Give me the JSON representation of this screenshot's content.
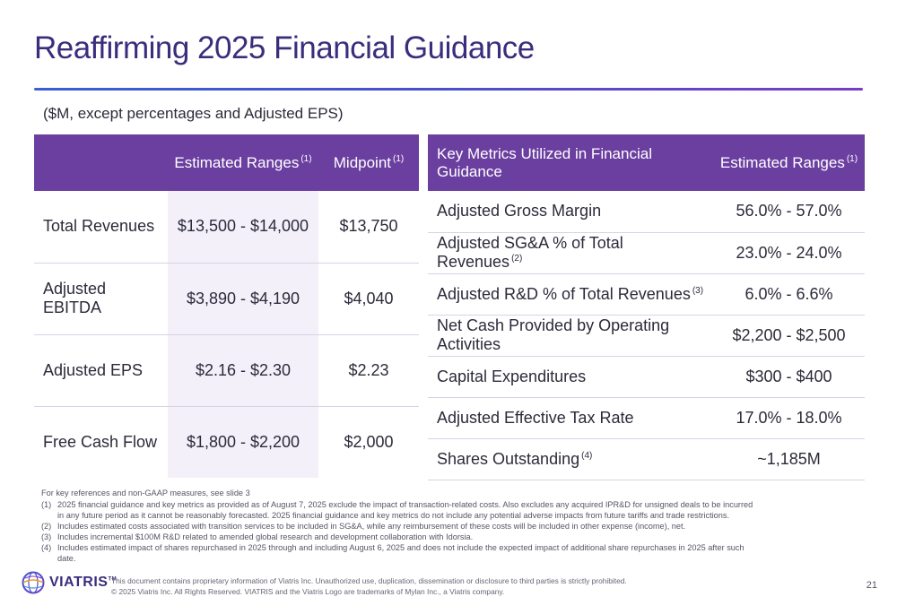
{
  "title": "Reaffirming 2025 Financial Guidance",
  "subtitle": "($M, except percentages and Adjusted EPS)",
  "left_table": {
    "headers": [
      "",
      "Estimated Ranges",
      "Midpoint"
    ],
    "header_refs": [
      "",
      "(1)",
      "(1)"
    ],
    "rows": [
      {
        "label": "Total Revenues",
        "range": "$13,500 - $14,000",
        "midpoint": "$13,750"
      },
      {
        "label": "Adjusted EBITDA",
        "range": "$3,890 - $4,190",
        "midpoint": "$4,040"
      },
      {
        "label": "Adjusted EPS",
        "range": "$2.16 - $2.30",
        "midpoint": "$2.23"
      },
      {
        "label": "Free Cash Flow",
        "range": "$1,800 - $2,200",
        "midpoint": "$2,000"
      }
    ]
  },
  "right_table": {
    "headers": [
      "Key Metrics Utilized in Financial Guidance",
      "Estimated Ranges"
    ],
    "header_refs": [
      "",
      "(1)"
    ],
    "rows": [
      {
        "metric": "Adjusted Gross Margin",
        "ref": "",
        "range": "56.0% - 57.0%"
      },
      {
        "metric": "Adjusted SG&A % of Total Revenues",
        "ref": "(2)",
        "range": "23.0% - 24.0%"
      },
      {
        "metric": "Adjusted R&D % of Total Revenues",
        "ref": "(3)",
        "range": "6.0% - 6.6%"
      },
      {
        "metric": "Net Cash Provided by Operating Activities",
        "ref": "",
        "range": "$2,200 - $2,500"
      },
      {
        "metric": "Capital Expenditures",
        "ref": "",
        "range": "$300 - $400"
      },
      {
        "metric": "Adjusted Effective Tax Rate",
        "ref": "",
        "range": "17.0% - 18.0%"
      },
      {
        "metric": "Shares Outstanding",
        "ref": "(4)",
        "range": "~1,185M"
      }
    ]
  },
  "notes": {
    "head": "For key references and non-GAAP measures, see slide 3",
    "items": [
      {
        "num": "(1)",
        "text": "2025 financial guidance and key metrics as provided as of August 7, 2025 exclude the impact of transaction-related costs. Also excludes any acquired IPR&D for unsigned deals to be incurred in any future period as it cannot be reasonably forecasted. 2025 financial guidance and key metrics do not include any potential adverse impacts from future tariffs and trade restrictions."
      },
      {
        "num": "(2)",
        "text": "Includes estimated costs associated with transition services to be included in SG&A, while any reimbursement of these costs will be included in other expense (income), net."
      },
      {
        "num": "(3)",
        "text": "Includes incremental $100M R&D related to amended global research and development collaboration with Idorsia."
      },
      {
        "num": "(4)",
        "text": "Includes estimated impact of shares repurchased in 2025 through and including August 6, 2025 and does not include the expected impact of additional share repurchases in 2025 after such date."
      }
    ]
  },
  "footer": {
    "logo_text": "VIATRIS",
    "logo_tm": "TM",
    "legal_line1": "This document contains proprietary information of Viatris Inc. Unauthorized use, duplication, dissemination or disclosure to third parties is strictly prohibited.",
    "legal_line2": "© 2025 Viatris Inc. All Rights Reserved. VIATRIS and the Viatris Logo are trademarks of Mylan Inc., a Viatris company.",
    "page_number": "21"
  },
  "colors": {
    "header_purple": "#6b3fa0",
    "title_purple": "#3a2d7c",
    "highlight_column": "#f3f0fa"
  }
}
